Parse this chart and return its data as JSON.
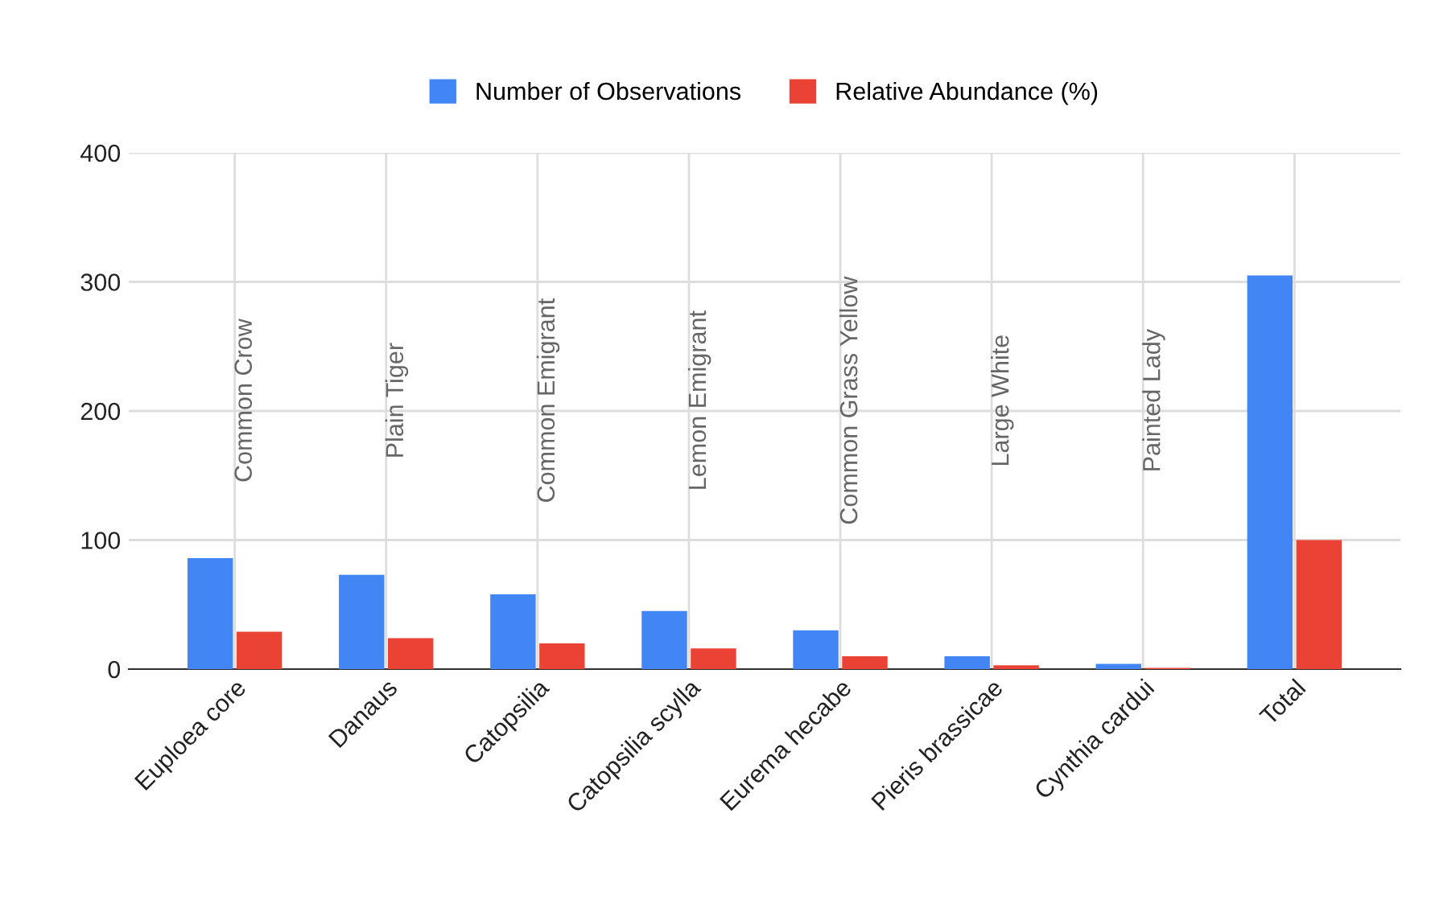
{
  "chart_data": {
    "type": "bar",
    "categories": [
      "Euploea core",
      "Danaus",
      "Catopsilia",
      "Catopsilia scylla",
      "Eurema hecabe",
      "Pieris brassicae",
      "Cynthia cardui",
      "Total"
    ],
    "series": [
      {
        "name": "Number of Observations",
        "color": "#4285f4",
        "values": [
          86,
          73,
          58,
          45,
          30,
          10,
          4,
          305
        ]
      },
      {
        "name": "Relative Abundance (%)",
        "color": "#ea4335",
        "values": [
          29,
          24,
          20,
          16,
          10,
          3,
          1,
          100
        ]
      }
    ],
    "ylim": [
      0,
      400
    ],
    "yticks": [
      0,
      100,
      200,
      300,
      400
    ],
    "grid": true,
    "legend": "top",
    "annotations": [
      "Common Crow",
      "Plain Tiger",
      "Common Emigrant",
      "Lemon Emigrant",
      "Common Grass Yellow",
      "Large White",
      "Painted Lady"
    ]
  }
}
